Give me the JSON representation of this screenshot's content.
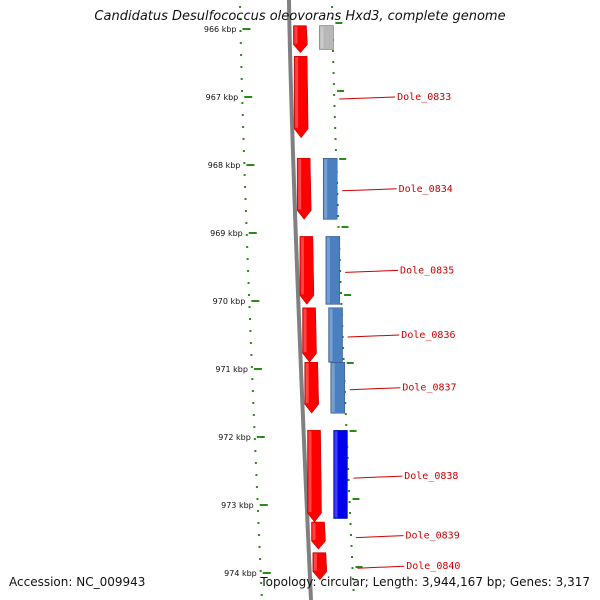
{
  "title": "Candidatus Desulfococcus oleovorans Hxd3, complete genome",
  "accession": "Accession: NC_009943",
  "summary": "Topology: circular; Length: 3,944,167 bp; Genes: 3,317",
  "colors": {
    "backbone": "#808080",
    "tick": "#2a8a1a",
    "forward_gene": "#ff0000",
    "reverse_gene": "#4a80c0",
    "reverse_gene_alt": "#0000ee",
    "label": "#cc0000"
  },
  "scale": {
    "unit": "kbp",
    "ticks": [
      {
        "kbp": 966,
        "label": "966 kbp"
      },
      {
        "kbp": 967,
        "label": "967 kbp"
      },
      {
        "kbp": 968,
        "label": "968 kbp"
      },
      {
        "kbp": 969,
        "label": "969 kbp"
      },
      {
        "kbp": 970,
        "label": "970 kbp"
      },
      {
        "kbp": 971,
        "label": "971 kbp"
      },
      {
        "kbp": 972,
        "label": "972 kbp"
      },
      {
        "kbp": 973,
        "label": "973 kbp"
      },
      {
        "kbp": 974,
        "label": "974 kbp"
      }
    ]
  },
  "genes": [
    {
      "strand": "forward",
      "start_kbp": 965.95,
      "end_kbp": 966.35,
      "label": ""
    },
    {
      "strand": "other",
      "start_kbp": 965.95,
      "end_kbp": 966.3,
      "label": ""
    },
    {
      "strand": "forward",
      "start_kbp": 966.4,
      "end_kbp": 967.6,
      "label": "Dole_0833"
    },
    {
      "strand": "forward",
      "start_kbp": 967.9,
      "end_kbp": 968.8,
      "label": "Dole_0834"
    },
    {
      "strand": "reverse",
      "start_kbp": 967.9,
      "end_kbp": 968.8,
      "label": ""
    },
    {
      "strand": "forward",
      "start_kbp": 969.05,
      "end_kbp": 970.05,
      "label": "Dole_0835"
    },
    {
      "strand": "reverse",
      "start_kbp": 969.05,
      "end_kbp": 970.05,
      "label": ""
    },
    {
      "strand": "forward",
      "start_kbp": 970.1,
      "end_kbp": 970.9,
      "label": "Dole_0836"
    },
    {
      "strand": "reverse",
      "start_kbp": 970.1,
      "end_kbp": 970.9,
      "label": ""
    },
    {
      "strand": "forward",
      "start_kbp": 970.9,
      "end_kbp": 971.65,
      "label": "Dole_0837"
    },
    {
      "strand": "reverse",
      "start_kbp": 970.9,
      "end_kbp": 971.65,
      "label": ""
    },
    {
      "strand": "forward",
      "start_kbp": 971.9,
      "end_kbp": 973.25,
      "label": "Dole_0838"
    },
    {
      "strand": "reverse_alt",
      "start_kbp": 971.9,
      "end_kbp": 973.2,
      "label": ""
    },
    {
      "strand": "forward",
      "start_kbp": 973.25,
      "end_kbp": 973.65,
      "label": "Dole_0839"
    },
    {
      "strand": "forward",
      "start_kbp": 973.7,
      "end_kbp": 974.1,
      "label": "Dole_0840"
    }
  ]
}
